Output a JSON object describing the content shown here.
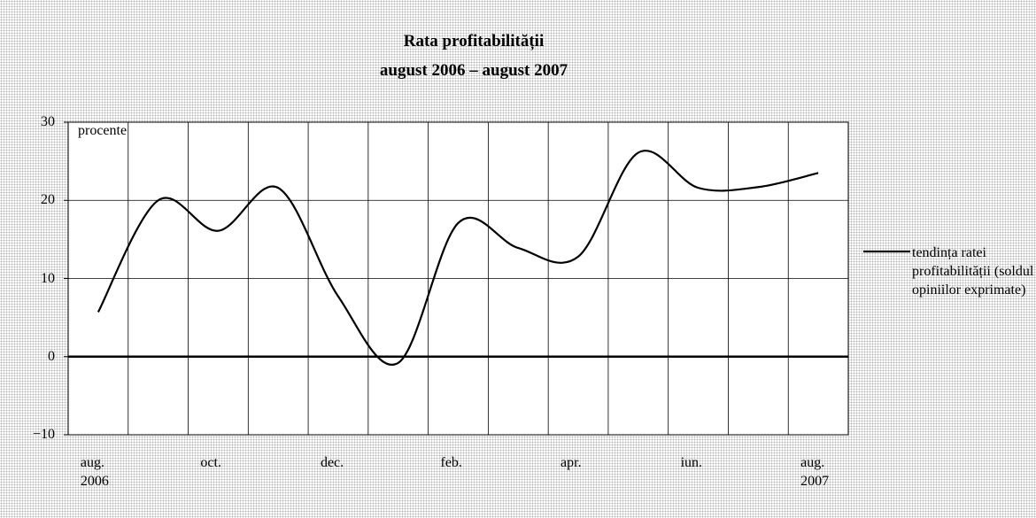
{
  "chart_data": {
    "type": "line",
    "title": "Rata profitabilității",
    "subtitle": "august 2006 – august 2007",
    "y_label": "procente",
    "categories": [
      "aug.\n2006",
      null,
      "oct.",
      null,
      "dec.",
      null,
      "feb.",
      null,
      "apr.",
      null,
      "iun.",
      null,
      "aug.\n2007"
    ],
    "series": [
      {
        "name": "tendința ratei profitabilității (soldul opiniilor exprimate)",
        "color": "#000000",
        "values": [
          5.7,
          20.0,
          16.1,
          21.6,
          7.7,
          -0.8,
          17.1,
          13.9,
          12.8,
          26.1,
          21.6,
          21.7,
          23.5
        ]
      }
    ],
    "ylim": [
      -10,
      30
    ],
    "yticks": [
      {
        "value": -10,
        "label": "−10"
      },
      0,
      10,
      20,
      30
    ],
    "grid": true,
    "legend": "right"
  }
}
